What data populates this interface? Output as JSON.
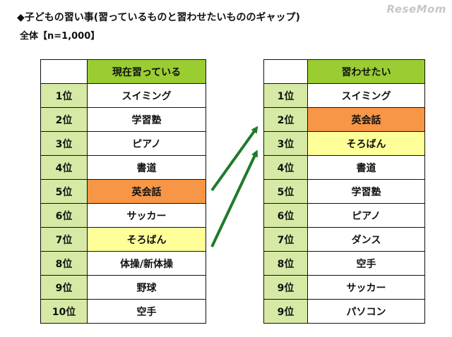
{
  "header": {
    "title": "◆子どもの習い事(習っているものと習わせたいもののギャップ)",
    "subtitle": "全体【n=1,000】",
    "logo": "ReseMom"
  },
  "current_table": {
    "header": "現在習っている",
    "rows": [
      {
        "rank": "1位",
        "item": "スイミング",
        "highlight": "none"
      },
      {
        "rank": "2位",
        "item": "学習塾",
        "highlight": "none"
      },
      {
        "rank": "3位",
        "item": "ピアノ",
        "highlight": "none"
      },
      {
        "rank": "4位",
        "item": "書道",
        "highlight": "none"
      },
      {
        "rank": "5位",
        "item": "英会話",
        "highlight": "orange"
      },
      {
        "rank": "6位",
        "item": "サッカー",
        "highlight": "none"
      },
      {
        "rank": "7位",
        "item": "そろばん",
        "highlight": "yellow"
      },
      {
        "rank": "8位",
        "item": "体操/新体操",
        "highlight": "none"
      },
      {
        "rank": "9位",
        "item": "野球",
        "highlight": "none"
      },
      {
        "rank": "10位",
        "item": "空手",
        "highlight": "none"
      }
    ]
  },
  "wanted_table": {
    "header": "習わせたい",
    "rows": [
      {
        "rank": "1位",
        "item": "スイミング",
        "highlight": "none"
      },
      {
        "rank": "2位",
        "item": "英会話",
        "highlight": "orange"
      },
      {
        "rank": "3位",
        "item": "そろばん",
        "highlight": "yellow"
      },
      {
        "rank": "4位",
        "item": "書道",
        "highlight": "none"
      },
      {
        "rank": "5位",
        "item": "学習塾",
        "highlight": "none"
      },
      {
        "rank": "6位",
        "item": "ピアノ",
        "highlight": "none"
      },
      {
        "rank": "7位",
        "item": "ダンス",
        "highlight": "none"
      },
      {
        "rank": "8位",
        "item": "空手",
        "highlight": "none"
      },
      {
        "rank": "9位",
        "item": "サッカー",
        "highlight": "none"
      },
      {
        "rank": "9位",
        "item": "パソコン",
        "highlight": "none"
      }
    ]
  },
  "colors": {
    "header_green": "#9acd32",
    "rank_green": "#d6eaa6",
    "highlight_orange": "#f79646",
    "highlight_yellow": "#ffff99",
    "arrow_green": "#1f7a2a"
  }
}
